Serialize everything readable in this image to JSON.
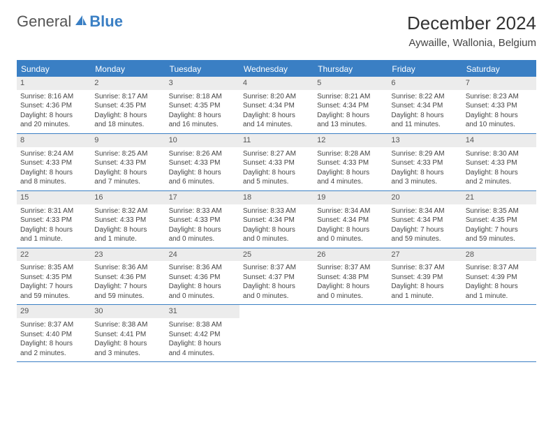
{
  "logo": {
    "text_gray": "General",
    "text_blue": "Blue"
  },
  "title": "December 2024",
  "location": "Aywaille, Wallonia, Belgium",
  "colors": {
    "header_blue": "#3a7fc4",
    "daynum_bg": "#ececec",
    "text": "#444444",
    "border": "#3a7fc4"
  },
  "weekdays": [
    "Sunday",
    "Monday",
    "Tuesday",
    "Wednesday",
    "Thursday",
    "Friday",
    "Saturday"
  ],
  "weeks": [
    [
      {
        "n": "1",
        "sr": "Sunrise: 8:16 AM",
        "ss": "Sunset: 4:36 PM",
        "d1": "Daylight: 8 hours",
        "d2": "and 20 minutes."
      },
      {
        "n": "2",
        "sr": "Sunrise: 8:17 AM",
        "ss": "Sunset: 4:35 PM",
        "d1": "Daylight: 8 hours",
        "d2": "and 18 minutes."
      },
      {
        "n": "3",
        "sr": "Sunrise: 8:18 AM",
        "ss": "Sunset: 4:35 PM",
        "d1": "Daylight: 8 hours",
        "d2": "and 16 minutes."
      },
      {
        "n": "4",
        "sr": "Sunrise: 8:20 AM",
        "ss": "Sunset: 4:34 PM",
        "d1": "Daylight: 8 hours",
        "d2": "and 14 minutes."
      },
      {
        "n": "5",
        "sr": "Sunrise: 8:21 AM",
        "ss": "Sunset: 4:34 PM",
        "d1": "Daylight: 8 hours",
        "d2": "and 13 minutes."
      },
      {
        "n": "6",
        "sr": "Sunrise: 8:22 AM",
        "ss": "Sunset: 4:34 PM",
        "d1": "Daylight: 8 hours",
        "d2": "and 11 minutes."
      },
      {
        "n": "7",
        "sr": "Sunrise: 8:23 AM",
        "ss": "Sunset: 4:33 PM",
        "d1": "Daylight: 8 hours",
        "d2": "and 10 minutes."
      }
    ],
    [
      {
        "n": "8",
        "sr": "Sunrise: 8:24 AM",
        "ss": "Sunset: 4:33 PM",
        "d1": "Daylight: 8 hours",
        "d2": "and 8 minutes."
      },
      {
        "n": "9",
        "sr": "Sunrise: 8:25 AM",
        "ss": "Sunset: 4:33 PM",
        "d1": "Daylight: 8 hours",
        "d2": "and 7 minutes."
      },
      {
        "n": "10",
        "sr": "Sunrise: 8:26 AM",
        "ss": "Sunset: 4:33 PM",
        "d1": "Daylight: 8 hours",
        "d2": "and 6 minutes."
      },
      {
        "n": "11",
        "sr": "Sunrise: 8:27 AM",
        "ss": "Sunset: 4:33 PM",
        "d1": "Daylight: 8 hours",
        "d2": "and 5 minutes."
      },
      {
        "n": "12",
        "sr": "Sunrise: 8:28 AM",
        "ss": "Sunset: 4:33 PM",
        "d1": "Daylight: 8 hours",
        "d2": "and 4 minutes."
      },
      {
        "n": "13",
        "sr": "Sunrise: 8:29 AM",
        "ss": "Sunset: 4:33 PM",
        "d1": "Daylight: 8 hours",
        "d2": "and 3 minutes."
      },
      {
        "n": "14",
        "sr": "Sunrise: 8:30 AM",
        "ss": "Sunset: 4:33 PM",
        "d1": "Daylight: 8 hours",
        "d2": "and 2 minutes."
      }
    ],
    [
      {
        "n": "15",
        "sr": "Sunrise: 8:31 AM",
        "ss": "Sunset: 4:33 PM",
        "d1": "Daylight: 8 hours",
        "d2": "and 1 minute."
      },
      {
        "n": "16",
        "sr": "Sunrise: 8:32 AM",
        "ss": "Sunset: 4:33 PM",
        "d1": "Daylight: 8 hours",
        "d2": "and 1 minute."
      },
      {
        "n": "17",
        "sr": "Sunrise: 8:33 AM",
        "ss": "Sunset: 4:33 PM",
        "d1": "Daylight: 8 hours",
        "d2": "and 0 minutes."
      },
      {
        "n": "18",
        "sr": "Sunrise: 8:33 AM",
        "ss": "Sunset: 4:34 PM",
        "d1": "Daylight: 8 hours",
        "d2": "and 0 minutes."
      },
      {
        "n": "19",
        "sr": "Sunrise: 8:34 AM",
        "ss": "Sunset: 4:34 PM",
        "d1": "Daylight: 8 hours",
        "d2": "and 0 minutes."
      },
      {
        "n": "20",
        "sr": "Sunrise: 8:34 AM",
        "ss": "Sunset: 4:34 PM",
        "d1": "Daylight: 7 hours",
        "d2": "and 59 minutes."
      },
      {
        "n": "21",
        "sr": "Sunrise: 8:35 AM",
        "ss": "Sunset: 4:35 PM",
        "d1": "Daylight: 7 hours",
        "d2": "and 59 minutes."
      }
    ],
    [
      {
        "n": "22",
        "sr": "Sunrise: 8:35 AM",
        "ss": "Sunset: 4:35 PM",
        "d1": "Daylight: 7 hours",
        "d2": "and 59 minutes."
      },
      {
        "n": "23",
        "sr": "Sunrise: 8:36 AM",
        "ss": "Sunset: 4:36 PM",
        "d1": "Daylight: 7 hours",
        "d2": "and 59 minutes."
      },
      {
        "n": "24",
        "sr": "Sunrise: 8:36 AM",
        "ss": "Sunset: 4:36 PM",
        "d1": "Daylight: 8 hours",
        "d2": "and 0 minutes."
      },
      {
        "n": "25",
        "sr": "Sunrise: 8:37 AM",
        "ss": "Sunset: 4:37 PM",
        "d1": "Daylight: 8 hours",
        "d2": "and 0 minutes."
      },
      {
        "n": "26",
        "sr": "Sunrise: 8:37 AM",
        "ss": "Sunset: 4:38 PM",
        "d1": "Daylight: 8 hours",
        "d2": "and 0 minutes."
      },
      {
        "n": "27",
        "sr": "Sunrise: 8:37 AM",
        "ss": "Sunset: 4:39 PM",
        "d1": "Daylight: 8 hours",
        "d2": "and 1 minute."
      },
      {
        "n": "28",
        "sr": "Sunrise: 8:37 AM",
        "ss": "Sunset: 4:39 PM",
        "d1": "Daylight: 8 hours",
        "d2": "and 1 minute."
      }
    ],
    [
      {
        "n": "29",
        "sr": "Sunrise: 8:37 AM",
        "ss": "Sunset: 4:40 PM",
        "d1": "Daylight: 8 hours",
        "d2": "and 2 minutes."
      },
      {
        "n": "30",
        "sr": "Sunrise: 8:38 AM",
        "ss": "Sunset: 4:41 PM",
        "d1": "Daylight: 8 hours",
        "d2": "and 3 minutes."
      },
      {
        "n": "31",
        "sr": "Sunrise: 8:38 AM",
        "ss": "Sunset: 4:42 PM",
        "d1": "Daylight: 8 hours",
        "d2": "and 4 minutes."
      },
      null,
      null,
      null,
      null
    ]
  ]
}
